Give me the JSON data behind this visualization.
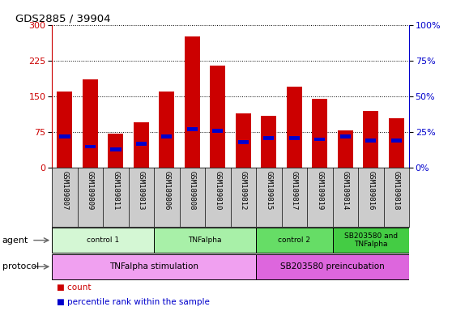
{
  "title": "GDS2885 / 39904",
  "samples": [
    "GSM189807",
    "GSM189809",
    "GSM189811",
    "GSM189813",
    "GSM189806",
    "GSM189808",
    "GSM189810",
    "GSM189812",
    "GSM189815",
    "GSM189817",
    "GSM189819",
    "GSM189814",
    "GSM189816",
    "GSM189818"
  ],
  "counts": [
    160,
    185,
    72,
    95,
    160,
    275,
    215,
    115,
    110,
    170,
    145,
    78,
    120,
    105
  ],
  "percentile_ranks": [
    22,
    15,
    13,
    17,
    22,
    27,
    26,
    18,
    21,
    21,
    20,
    22,
    19,
    19
  ],
  "ylim_left": [
    0,
    300
  ],
  "ylim_right": [
    0,
    100
  ],
  "yticks_left": [
    0,
    75,
    150,
    225,
    300
  ],
  "yticks_right": [
    0,
    25,
    50,
    75,
    100
  ],
  "bar_color": "#cc0000",
  "percentile_color": "#0000cc",
  "agent_groups": [
    {
      "label": "control 1",
      "start": 0,
      "end": 4,
      "color": "#d4f7d4"
    },
    {
      "label": "TNFalpha",
      "start": 4,
      "end": 8,
      "color": "#a8f0a8"
    },
    {
      "label": "control 2",
      "start": 8,
      "end": 11,
      "color": "#66dd66"
    },
    {
      "label": "SB203580 and\nTNFalpha",
      "start": 11,
      "end": 14,
      "color": "#44cc44"
    }
  ],
  "protocol_groups": [
    {
      "label": "TNFalpha stimulation",
      "start": 0,
      "end": 8,
      "color": "#f0a0f0"
    },
    {
      "label": "SB203580 preincubation",
      "start": 8,
      "end": 14,
      "color": "#dd66dd"
    }
  ],
  "agent_label": "agent",
  "protocol_label": "protocol",
  "legend_count": "count",
  "legend_percentile": "percentile rank within the sample",
  "bg_color": "#ffffff",
  "tick_area_color": "#cccccc"
}
